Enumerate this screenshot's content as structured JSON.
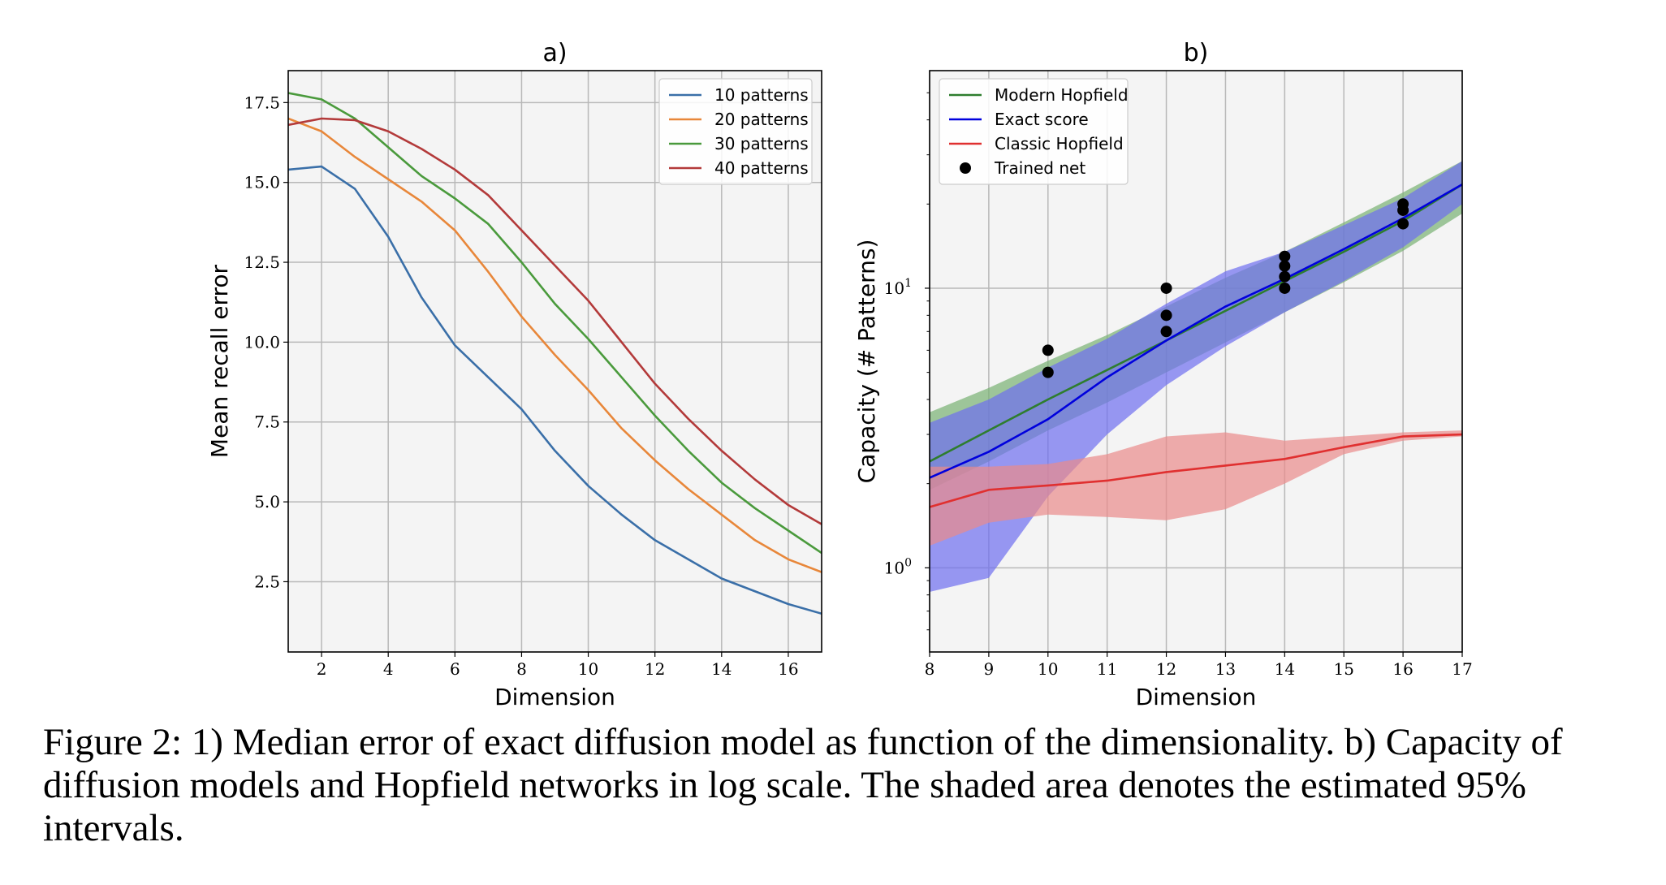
{
  "chart_data": [
    {
      "type": "line",
      "title": "a)",
      "xlabel": "Dimension",
      "ylabel": "Mean recall error",
      "xlim": [
        1,
        17
      ],
      "ylim": [
        0.3,
        18.5
      ],
      "xticks": [
        2,
        4,
        6,
        8,
        10,
        12,
        14,
        16
      ],
      "yticks": [
        2.5,
        5.0,
        7.5,
        10.0,
        12.5,
        15.0,
        17.5
      ],
      "grid": true,
      "legend_position": "top-right",
      "x": [
        1,
        2,
        3,
        4,
        5,
        6,
        7,
        8,
        9,
        10,
        11,
        12,
        13,
        14,
        15,
        16,
        17
      ],
      "series": [
        {
          "name": "10 patterns",
          "color": "#3a6fa8",
          "values": [
            15.4,
            15.5,
            14.8,
            13.3,
            11.4,
            9.9,
            8.9,
            7.9,
            6.6,
            5.5,
            4.6,
            3.8,
            3.2,
            2.6,
            2.2,
            1.8,
            1.5
          ]
        },
        {
          "name": "20 patterns",
          "color": "#e8873a",
          "values": [
            17.0,
            16.6,
            15.8,
            15.1,
            14.4,
            13.5,
            12.2,
            10.8,
            9.6,
            8.5,
            7.3,
            6.3,
            5.4,
            4.6,
            3.8,
            3.2,
            2.8
          ]
        },
        {
          "name": "30 patterns",
          "color": "#4a9a3c",
          "values": [
            17.8,
            17.6,
            17.0,
            16.1,
            15.2,
            14.5,
            13.7,
            12.5,
            11.2,
            10.1,
            8.9,
            7.7,
            6.6,
            5.6,
            4.8,
            4.1,
            3.4
          ]
        },
        {
          "name": "40 patterns",
          "color": "#b33a3a",
          "values": [
            16.8,
            17.0,
            16.95,
            16.6,
            16.05,
            15.4,
            14.6,
            13.5,
            12.4,
            11.3,
            10.0,
            8.7,
            7.6,
            6.6,
            5.7,
            4.9,
            4.3
          ]
        }
      ]
    },
    {
      "type": "line",
      "title": "b)",
      "xlabel": "Dimension",
      "ylabel": "Capacity (# Patterns)",
      "yscale": "log",
      "xlim": [
        8,
        17
      ],
      "ylim": [
        0.5,
        60
      ],
      "xticks": [
        8,
        9,
        10,
        11,
        12,
        13,
        14,
        15,
        16,
        17
      ],
      "yticks": [
        {
          "value": 1,
          "label_base": "10",
          "label_exp": "0"
        },
        {
          "value": 10,
          "label_base": "10",
          "label_exp": "1"
        }
      ],
      "grid": true,
      "legend_position": "top-left",
      "x": [
        8,
        9,
        10,
        11,
        12,
        13,
        14,
        15,
        16,
        17
      ],
      "series": [
        {
          "name": "Modern Hopfield",
          "color": "#2e7d2e",
          "band_color": "#77b072",
          "values": [
            2.4,
            3.1,
            4.0,
            5.1,
            6.5,
            8.3,
            10.6,
            13.5,
            17.4,
            23.5
          ],
          "lower": [
            1.9,
            2.4,
            3.1,
            3.9,
            5.0,
            6.4,
            8.2,
            10.5,
            13.6,
            18.5
          ],
          "upper": [
            3.6,
            4.4,
            5.5,
            6.8,
            8.6,
            10.9,
            13.5,
            17.2,
            22.0,
            28.5
          ]
        },
        {
          "name": "Exact score",
          "color": "#0000dd",
          "band_color": "#6e6ef0",
          "values": [
            2.1,
            2.6,
            3.4,
            4.8,
            6.5,
            8.6,
            10.8,
            13.8,
            17.8,
            23.5
          ],
          "lower": [
            0.82,
            0.92,
            1.8,
            3.0,
            4.5,
            6.2,
            8.2,
            10.6,
            14.0,
            20.0
          ],
          "upper": [
            3.3,
            4.0,
            5.2,
            6.6,
            8.8,
            11.5,
            13.5,
            16.8,
            21.0,
            28.5
          ]
        },
        {
          "name": "Classic Hopfield",
          "color": "#e03030",
          "band_color": "#ea8a8a",
          "values": [
            1.65,
            1.9,
            1.97,
            2.05,
            2.2,
            2.32,
            2.45,
            2.7,
            2.95,
            3.0
          ],
          "lower": [
            1.2,
            1.45,
            1.55,
            1.52,
            1.48,
            1.62,
            2.0,
            2.55,
            2.85,
            2.95
          ],
          "upper": [
            2.3,
            2.3,
            2.35,
            2.55,
            2.95,
            3.05,
            2.85,
            2.95,
            3.05,
            3.1
          ]
        }
      ],
      "scatter": {
        "name": "Trained net",
        "color": "#000000",
        "points": [
          [
            10,
            5.0
          ],
          [
            10,
            6.0
          ],
          [
            12,
            7.0
          ],
          [
            12,
            8.0
          ],
          [
            12,
            10.0
          ],
          [
            14,
            10.0
          ],
          [
            14,
            11.0
          ],
          [
            14,
            12.0
          ],
          [
            14,
            13.0
          ],
          [
            16,
            17.0
          ],
          [
            16,
            19.0
          ],
          [
            16,
            20.0
          ]
        ]
      }
    }
  ],
  "caption": "Figure 2: 1) Median error of exact diffusion model as function of the dimensionality. b) Capacity of diffusion models and Hopfield networks in log scale. The shaded area denotes the estimated 95% intervals.",
  "colors": {
    "plot_background": "#f4f4f4",
    "grid": "#b8b8b8"
  }
}
